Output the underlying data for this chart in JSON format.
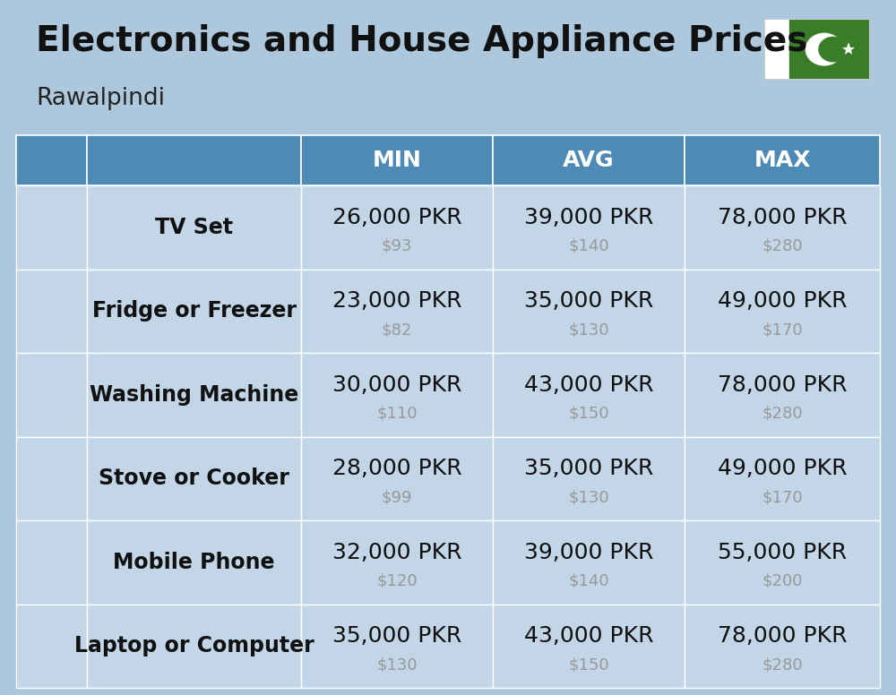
{
  "title_main": "Electronics and House Appliance Prices",
  "subtitle": "Rawalpindi",
  "bg_color": "#adc8dc",
  "header_color": "#4d8ab5",
  "header_text_color": "#ffffff",
  "row_bg": "#c2d6e8",
  "border_color": "#ffffff",
  "col_headers": [
    "MIN",
    "AVG",
    "MAX"
  ],
  "items": [
    {
      "name": "TV Set",
      "min_pkr": "26,000 PKR",
      "min_usd": "$93",
      "avg_pkr": "39,000 PKR",
      "avg_usd": "$140",
      "max_pkr": "78,000 PKR",
      "max_usd": "$280"
    },
    {
      "name": "Fridge or Freezer",
      "min_pkr": "23,000 PKR",
      "min_usd": "$82",
      "avg_pkr": "35,000 PKR",
      "avg_usd": "$130",
      "max_pkr": "49,000 PKR",
      "max_usd": "$170"
    },
    {
      "name": "Washing Machine",
      "min_pkr": "30,000 PKR",
      "min_usd": "$110",
      "avg_pkr": "43,000 PKR",
      "avg_usd": "$150",
      "max_pkr": "78,000 PKR",
      "max_usd": "$280"
    },
    {
      "name": "Stove or Cooker",
      "min_pkr": "28,000 PKR",
      "min_usd": "$99",
      "avg_pkr": "35,000 PKR",
      "avg_usd": "$130",
      "max_pkr": "49,000 PKR",
      "max_usd": "$170"
    },
    {
      "name": "Mobile Phone",
      "min_pkr": "32,000 PKR",
      "min_usd": "$120",
      "avg_pkr": "39,000 PKR",
      "avg_usd": "$140",
      "max_pkr": "55,000 PKR",
      "max_usd": "$200"
    },
    {
      "name": "Laptop or Computer",
      "min_pkr": "35,000 PKR",
      "min_usd": "$130",
      "avg_pkr": "43,000 PKR",
      "avg_usd": "$150",
      "max_pkr": "78,000 PKR",
      "max_usd": "$280"
    }
  ],
  "pkr_fontsize": 18,
  "usd_fontsize": 13,
  "name_fontsize": 17,
  "header_fontsize": 18,
  "title_fontsize": 28,
  "subtitle_fontsize": 19
}
